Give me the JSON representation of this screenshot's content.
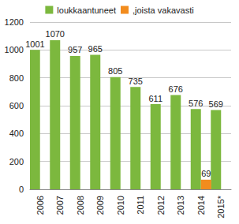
{
  "chart_data": {
    "type": "bar",
    "categories": [
      "2006",
      "2007",
      "2008",
      "2009",
      "2010",
      "2011",
      "2012",
      "2013",
      "2014",
      "2015*"
    ],
    "series": [
      {
        "name": "loukkaantuneet",
        "color": "#7cb83e",
        "values": [
          1001,
          1070,
          957,
          965,
          805,
          735,
          611,
          676,
          576,
          569
        ]
      },
      {
        "name": ",joista vakavasti",
        "color": "#f28c1e",
        "values": [
          null,
          null,
          null,
          null,
          null,
          null,
          null,
          null,
          69,
          null
        ]
      }
    ],
    "ylim": [
      0,
      1200
    ],
    "yticks": [
      0,
      200,
      400,
      600,
      800,
      1000,
      1200
    ],
    "grid": true,
    "legend": "top",
    "data_labels": true
  }
}
